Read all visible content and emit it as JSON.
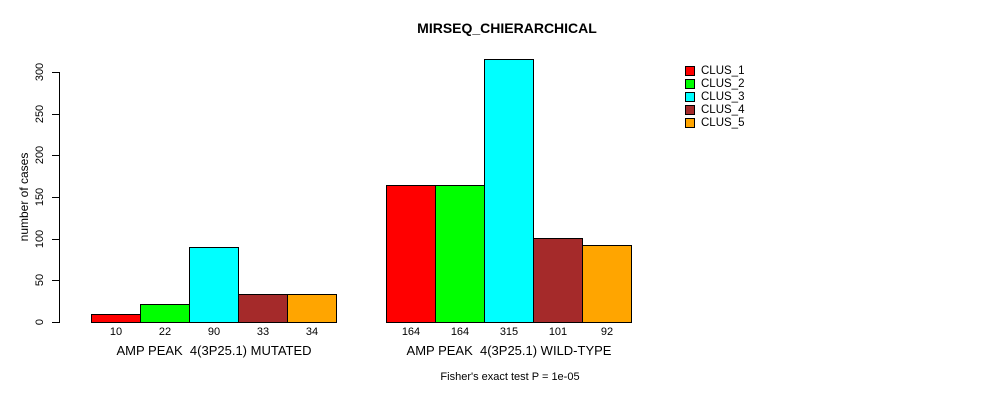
{
  "chart_data": {
    "type": "bar",
    "title": "MIRSEQ_CHIERARCHICAL",
    "ylabel": "number of cases",
    "xlabel": "",
    "ylim": [
      0,
      300
    ],
    "yticks": [
      0,
      50,
      100,
      150,
      200,
      250,
      300
    ],
    "grid": false,
    "legend_position": "right-outside",
    "categories": [
      "AMP PEAK  4(3P25.1) MUTATED",
      "AMP PEAK  4(3P25.1) WILD-TYPE"
    ],
    "series": [
      {
        "name": "CLUS_1",
        "color": "#FF0000",
        "values": [
          10,
          164
        ]
      },
      {
        "name": "CLUS_2",
        "color": "#00FF00",
        "values": [
          22,
          164
        ]
      },
      {
        "name": "CLUS_3",
        "color": "#00FFFF",
        "values": [
          90,
          315
        ]
      },
      {
        "name": "CLUS_4",
        "color": "#A52A2A",
        "values": [
          33,
          101
        ]
      },
      {
        "name": "CLUS_5",
        "color": "#FFA500",
        "values": [
          34,
          92
        ]
      }
    ],
    "bar_value_labels": [
      [
        10,
        22,
        90,
        33,
        34
      ],
      [
        164,
        164,
        315,
        101,
        92
      ]
    ],
    "caption": "Fisher's exact test P = 1e-05",
    "bar_border_color": "#000000",
    "axis_color": "#000000"
  }
}
